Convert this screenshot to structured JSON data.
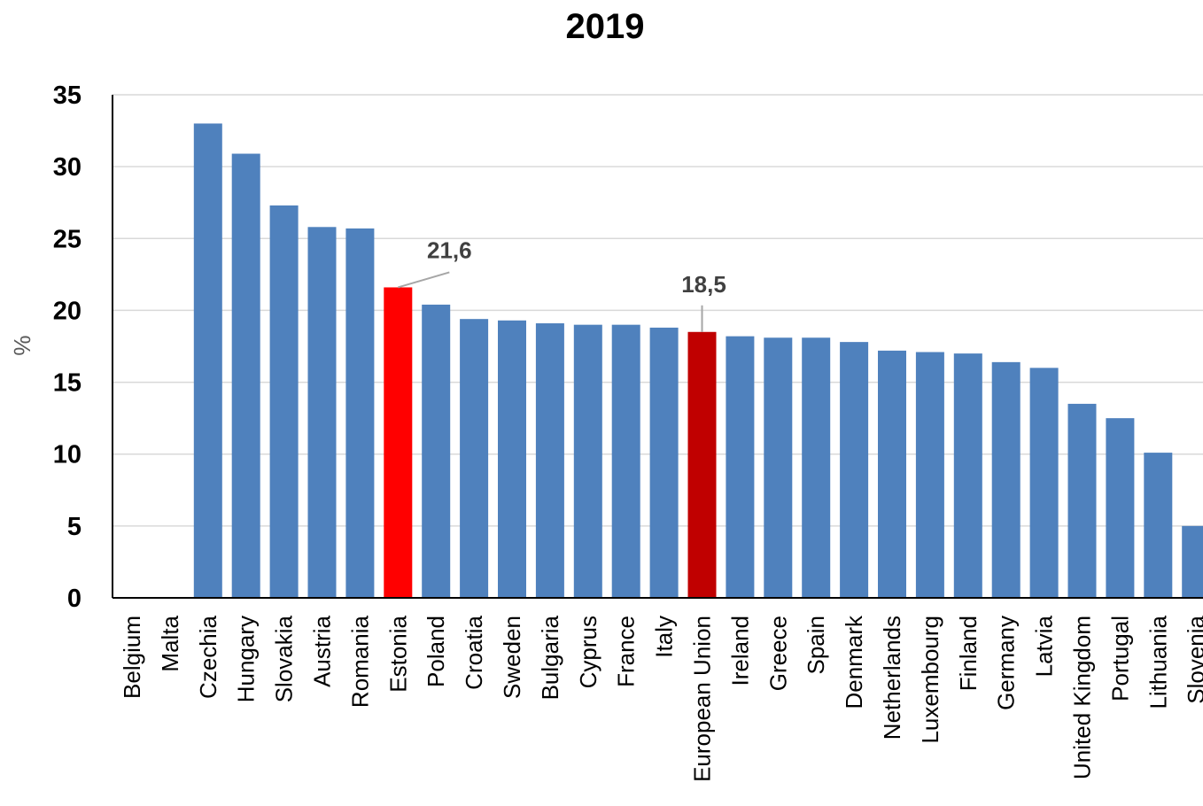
{
  "chart_data": {
    "type": "bar",
    "title": "2019",
    "xlabel": "",
    "ylabel": "%",
    "ylim": [
      0,
      35
    ],
    "yticks": [
      "0",
      "5",
      "10",
      "15",
      "20",
      "25",
      "30",
      "35"
    ],
    "grid": true,
    "categories": [
      "Belgium",
      "Malta",
      "Czechia",
      "Hungary",
      "Slovakia",
      "Austria",
      "Romania",
      "Estonia",
      "Poland",
      "Croatia",
      "Sweden",
      "Bulgaria",
      "Cyprus",
      "France",
      "Italy",
      "European Union",
      "Ireland",
      "Greece",
      "Spain",
      "Denmark",
      "Netherlands",
      "Luxembourg",
      "Finland",
      "Germany",
      "Latvia",
      "United Kingdom",
      "Portugal",
      "Lithuania",
      "Slovenia"
    ],
    "values": [
      0,
      0,
      33.0,
      30.9,
      27.3,
      25.8,
      25.7,
      21.6,
      20.4,
      19.4,
      19.3,
      19.1,
      19.0,
      19.0,
      18.8,
      18.5,
      18.2,
      18.1,
      18.1,
      17.8,
      17.2,
      17.1,
      17.0,
      16.4,
      16.0,
      13.5,
      12.5,
      10.1,
      5.0
    ],
    "colors": {
      "default": "#4F81BD",
      "highlight": {
        "Estonia": "#FF0000",
        "European Union": "#C00000"
      },
      "grid": "#D9D9D9",
      "axis": "#000000",
      "leader": "#A6A6A6"
    },
    "data_labels": [
      {
        "category": "Estonia",
        "text": "21,6"
      },
      {
        "category": "European Union",
        "text": "18,5"
      }
    ]
  }
}
